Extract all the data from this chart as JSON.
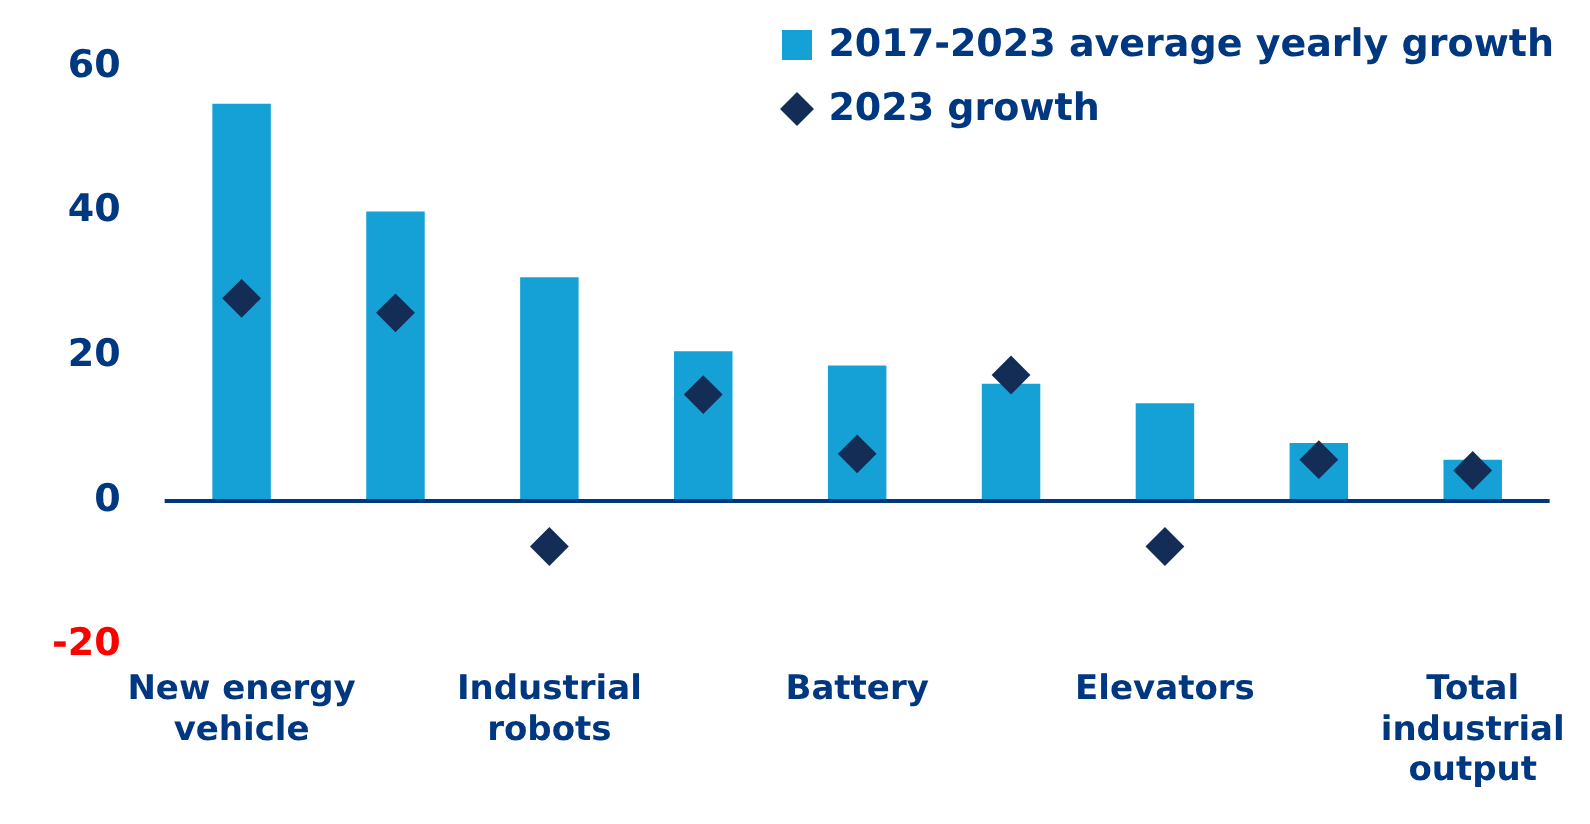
{
  "chart_data": {
    "type": "bar",
    "categories": [
      "New energy vehicle",
      null,
      "Industrial robots",
      null,
      "Battery",
      null,
      "Elevators",
      null,
      "Total industrial output"
    ],
    "series": [
      {
        "name": "2017-2023 average yearly growth",
        "color": "#15a1d5",
        "values": [
          54.9,
          40,
          30.9,
          20.7,
          18.7,
          16.2,
          13.5,
          8,
          5.7
        ]
      },
      {
        "name": "2023 growth",
        "type": "scatter",
        "color": "#142d57",
        "values": [
          28,
          26,
          -6.3,
          14.7,
          6.5,
          17.4,
          -6.3,
          5.7,
          4.2
        ]
      }
    ],
    "ylim": [
      -20,
      60
    ],
    "yticks": [
      -20,
      0,
      20,
      40,
      60
    ],
    "ref_lines": [
      {
        "axis": "y",
        "value": 0,
        "color": "#003781"
      }
    ],
    "grid": false,
    "legend": "top right",
    "marker": "diamond"
  }
}
